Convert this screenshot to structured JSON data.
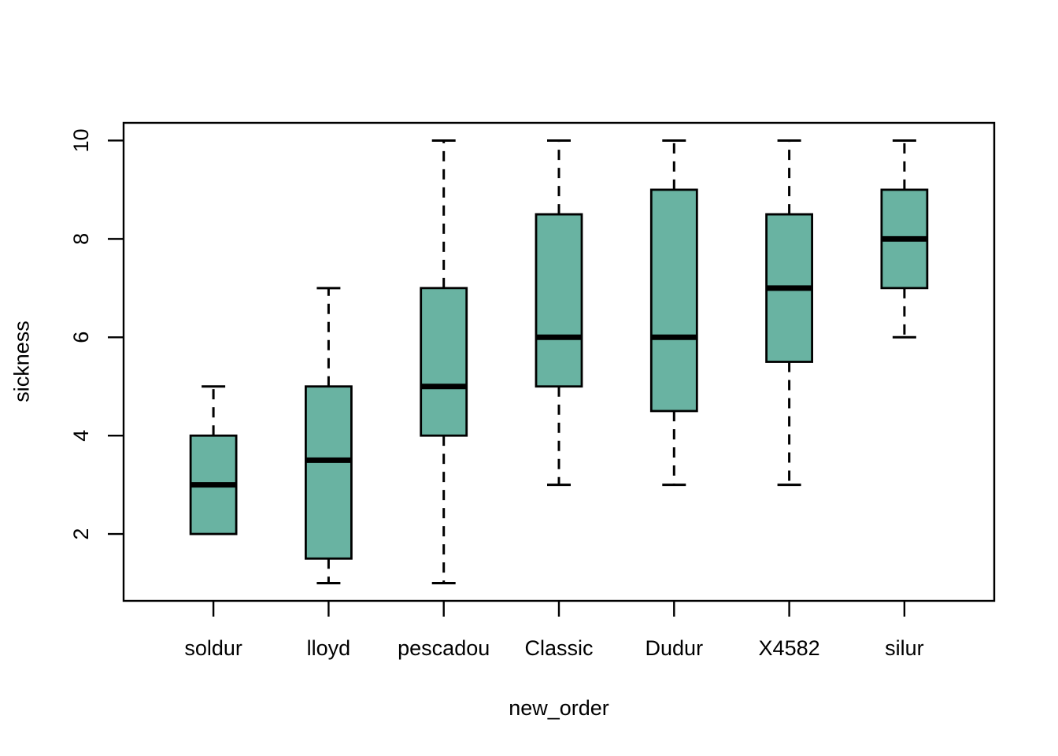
{
  "figure": {
    "background": "#ffffff",
    "text_color": "#000000"
  },
  "chart_data": {
    "type": "boxplot",
    "title": "",
    "xlabel": "new_order",
    "ylabel": "sickness",
    "categories": [
      "soldur",
      "lloyd",
      "pescadou",
      "Classic",
      "Dudur",
      "X4582",
      "silur"
    ],
    "series": [
      {
        "name": "soldur",
        "min": 2,
        "q1": 2,
        "median": 3,
        "q3": 4,
        "max": 5
      },
      {
        "name": "lloyd",
        "min": 1,
        "q1": 1.5,
        "median": 3.5,
        "q3": 5,
        "max": 7
      },
      {
        "name": "pescadou",
        "min": 1,
        "q1": 4,
        "median": 5,
        "q3": 7,
        "max": 10
      },
      {
        "name": "Classic",
        "min": 3,
        "q1": 5,
        "median": 6,
        "q3": 8.5,
        "max": 10
      },
      {
        "name": "Dudur",
        "min": 3,
        "q1": 4.5,
        "median": 6,
        "q3": 9,
        "max": 10
      },
      {
        "name": "X4582",
        "min": 3,
        "q1": 5.5,
        "median": 7,
        "q3": 8.5,
        "max": 10
      },
      {
        "name": "silur",
        "min": 6,
        "q1": 7,
        "median": 8,
        "q3": 9,
        "max": 10
      }
    ],
    "yticks": [
      2,
      4,
      6,
      8,
      10
    ],
    "ytick_labels": [
      "2",
      "4",
      "6",
      "8",
      "10"
    ],
    "ylim": [
      0.64,
      10.36
    ],
    "grid": false,
    "legend_position": "none",
    "box_fill": "#69b3a2",
    "box_border": "#000000",
    "median_color": "#000000",
    "whisker_color": "#000000",
    "whisker_style": "dashed"
  }
}
